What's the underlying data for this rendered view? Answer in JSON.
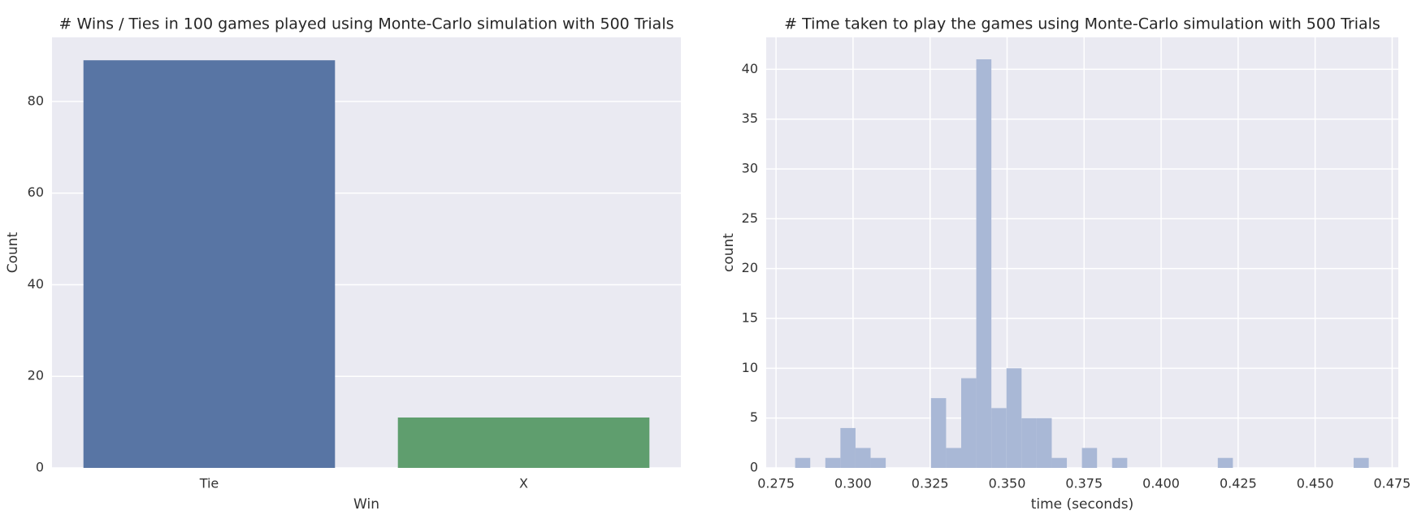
{
  "chart_data": [
    {
      "type": "bar",
      "title": "# Wins / Ties in 100 games played using Monte-Carlo simulation with 500 Trials",
      "x_label": "Win",
      "y_label": "Count",
      "categories": [
        "Tie",
        "X"
      ],
      "values": [
        89,
        11
      ],
      "colors": [
        "#5875a4",
        "#5f9e6e"
      ],
      "ylim": [
        0,
        94
      ],
      "yticks": [
        0,
        20,
        40,
        60,
        80
      ],
      "grid": true
    },
    {
      "type": "histogram",
      "title": "# Time taken to play the games using Monte-Carlo simulation with 500 Trials",
      "x_label": "time (seconds)",
      "y_label": "count",
      "bins": [
        0.2812,
        0.2861,
        0.291,
        0.2959,
        0.3008,
        0.3057,
        0.3106,
        0.3155,
        0.3204,
        0.3253,
        0.3302,
        0.3351,
        0.34,
        0.3449,
        0.3498,
        0.3547,
        0.3596,
        0.3645,
        0.3694,
        0.3743,
        0.3792,
        0.3841,
        0.389,
        0.3939,
        0.3988,
        0.4037,
        0.4086,
        0.4135,
        0.4184,
        0.4233,
        0.4282,
        0.4331,
        0.438,
        0.4429,
        0.4478,
        0.4527,
        0.4576,
        0.4625,
        0.4674
      ],
      "values": [
        1,
        0,
        1,
        4,
        2,
        1,
        0,
        0,
        0,
        7,
        2,
        9,
        41,
        6,
        10,
        5,
        5,
        1,
        0,
        2,
        0,
        1,
        0,
        0,
        0,
        0,
        0,
        0,
        1,
        0,
        0,
        0,
        0,
        0,
        0,
        0,
        0,
        1
      ],
      "color": "#a9b8d6",
      "xlim": [
        0.2718,
        0.477
      ],
      "xticks": [
        0.275,
        {
          "value": 0.3,
          "label": "0.300"
        },
        0.325,
        {
          "value": 0.35,
          "label": "0.350"
        },
        0.375,
        {
          "value": 0.4,
          "label": "0.400"
        },
        0.425,
        {
          "value": 0.45,
          "label": "0.450"
        },
        0.475
      ],
      "ylim": [
        0,
        43.2
      ],
      "yticks": [
        0,
        5,
        10,
        15,
        20,
        25,
        30,
        35,
        40
      ],
      "grid": true
    }
  ]
}
